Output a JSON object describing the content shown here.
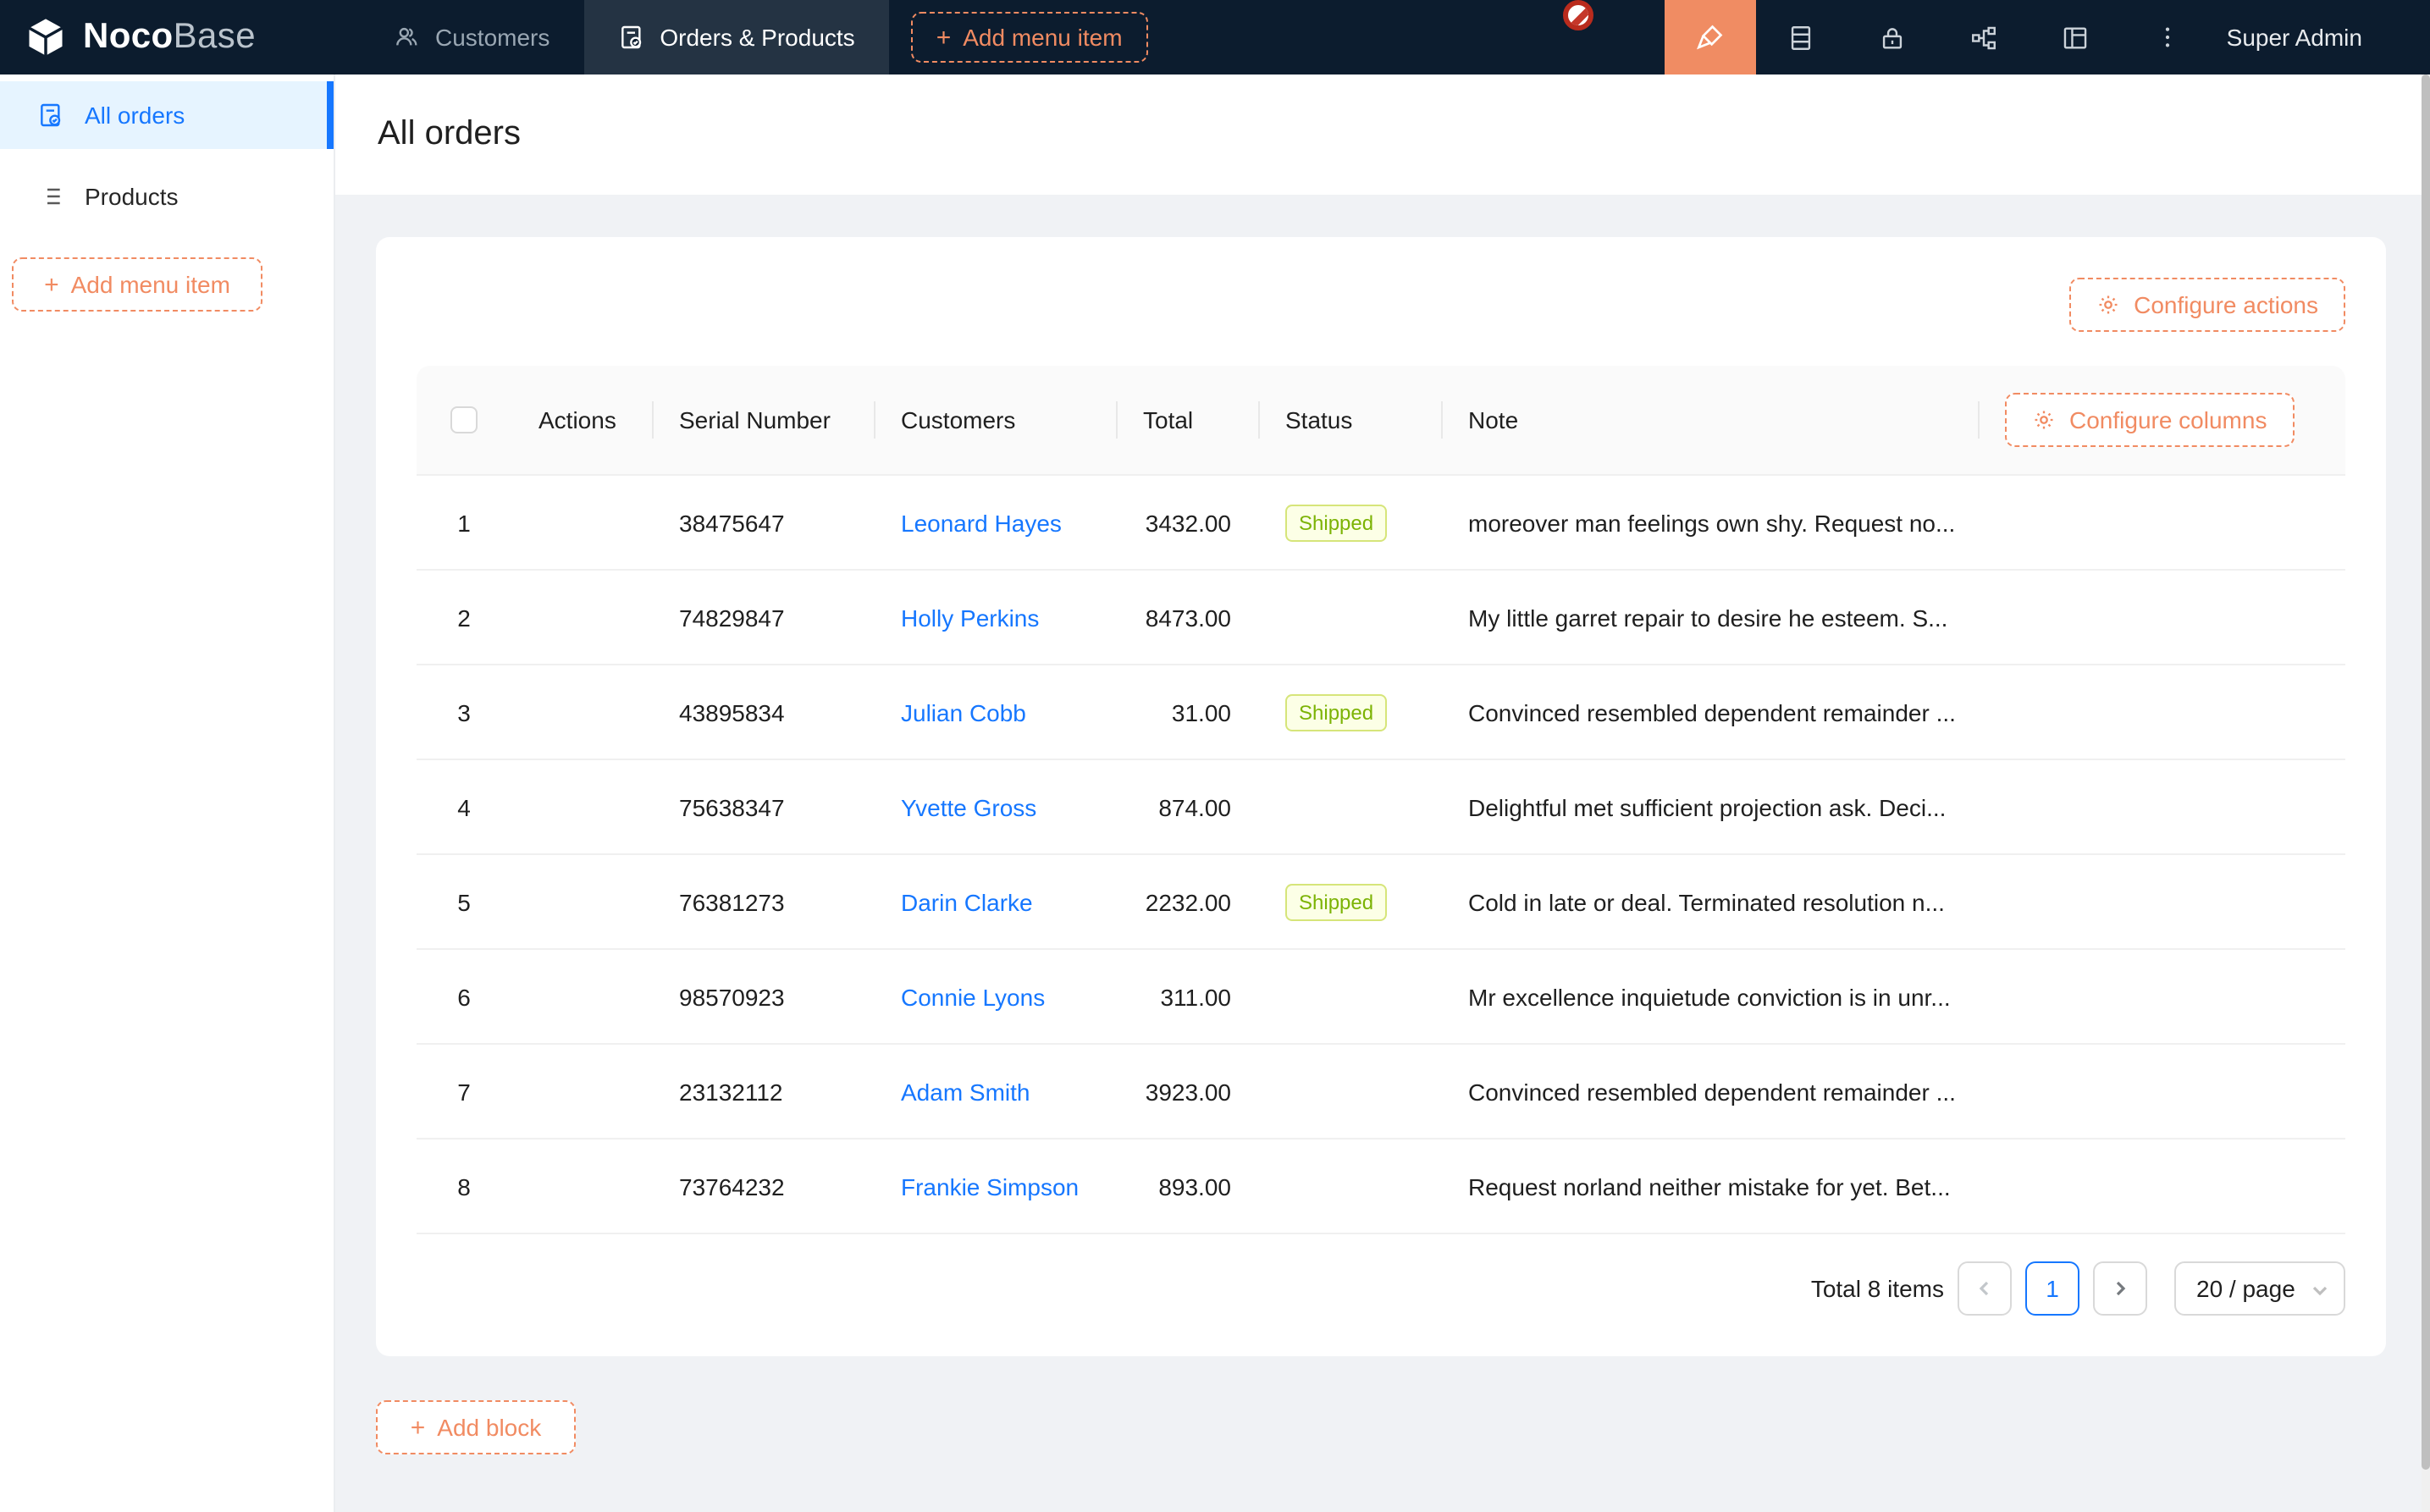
{
  "navbar": {
    "logo_bold": "Noco",
    "logo_light": "Base",
    "tabs": [
      {
        "label": "Customers",
        "icon": "team-icon",
        "active": false
      },
      {
        "label": "Orders & Products",
        "icon": "order-doc-icon",
        "active": true
      }
    ],
    "add_menu_item_label": "Add menu item",
    "right_icons": [
      "ui-editor-pen-icon",
      "database-icon",
      "lock-icon",
      "plugin-nodes-icon",
      "layout-icon",
      "more-vertical-icon"
    ],
    "user_label": "Super Admin"
  },
  "sidebar": {
    "items": [
      {
        "label": "All orders",
        "icon": "order-doc-icon",
        "active": true
      },
      {
        "label": "Products",
        "icon": "list-icon",
        "active": false
      }
    ],
    "add_menu_item_label": "Add menu item"
  },
  "page": {
    "title": "All orders"
  },
  "toolbar": {
    "configure_actions_label": "Configure actions",
    "configure_columns_label": "Configure columns"
  },
  "table": {
    "columns": [
      "Actions",
      "Serial Number",
      "Customers",
      "Total",
      "Status",
      "Note"
    ],
    "rows": [
      {
        "index": "1",
        "serial": "38475647",
        "customer": "Leonard Hayes",
        "total": "3432.00",
        "status": "Shipped",
        "note": "moreover man feelings own shy. Request no..."
      },
      {
        "index": "2",
        "serial": "74829847",
        "customer": "Holly Perkins",
        "total": "8473.00",
        "status": "",
        "note": "My little garret repair to desire he esteem. S..."
      },
      {
        "index": "3",
        "serial": "43895834",
        "customer": "Julian Cobb",
        "total": "31.00",
        "status": "Shipped",
        "note": "Convinced resembled dependent remainder ..."
      },
      {
        "index": "4",
        "serial": "75638347",
        "customer": "Yvette Gross",
        "total": "874.00",
        "status": "",
        "note": "Delightful met sufficient projection ask. Deci..."
      },
      {
        "index": "5",
        "serial": "76381273",
        "customer": "Darin Clarke",
        "total": "2232.00",
        "status": "Shipped",
        "note": "Cold in late or deal. Terminated resolution n..."
      },
      {
        "index": "6",
        "serial": "98570923",
        "customer": "Connie Lyons",
        "total": "311.00",
        "status": "",
        "note": "Mr excellence inquietude conviction is in unr..."
      },
      {
        "index": "7",
        "serial": "23132112",
        "customer": "Adam Smith",
        "total": "3923.00",
        "status": "",
        "note": "Convinced resembled dependent remainder ..."
      },
      {
        "index": "8",
        "serial": "73764232",
        "customer": "Frankie Simpson",
        "total": "893.00",
        "status": "",
        "note": "Request norland neither mistake for yet. Bet..."
      }
    ]
  },
  "pagination": {
    "total_label": "Total 8 items",
    "current_page": "1",
    "page_size_label": "20 / page"
  },
  "add_block_label": "Add block",
  "colors": {
    "accent": "#f18b62",
    "link": "#1677ff",
    "navbar_bg": "#0c1c2e",
    "editor_btn_bg": "#f08c63",
    "page_bg": "#f0f2f5",
    "tag_bg": "#fcffe6",
    "tag_border": "#d6e57a",
    "tag_text": "#7cb305"
  }
}
